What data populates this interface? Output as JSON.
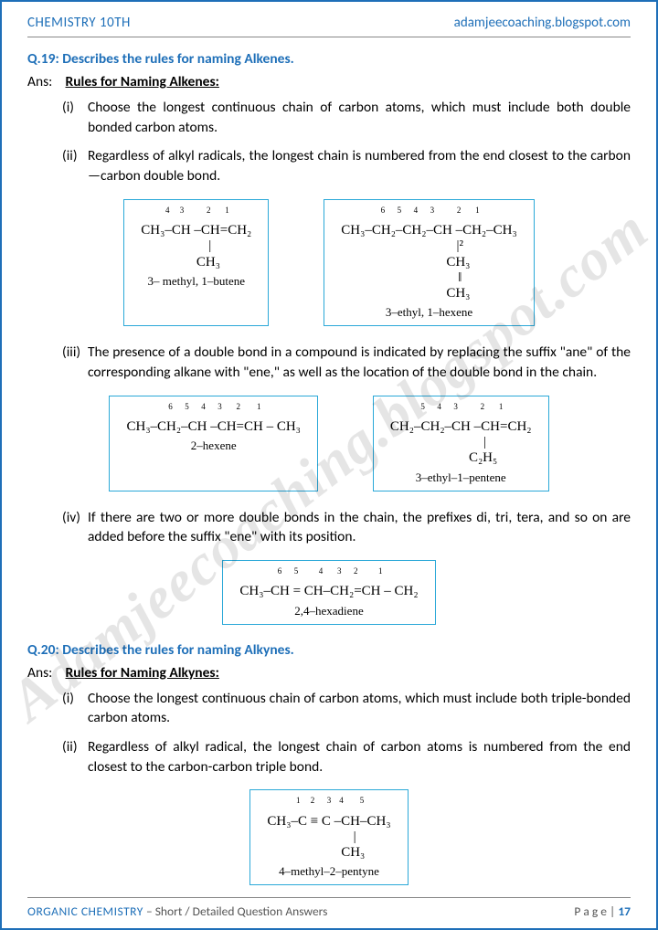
{
  "header": {
    "left": "CHEMISTRY 10TH",
    "right": "adamjeecoaching.blogspot.com"
  },
  "watermark": "Adamjeecoaching.blogspot.com",
  "q19": {
    "label": "Q.19:",
    "title": "Describes the rules for naming Alkenes.",
    "ans_label": "Ans:",
    "heading": "Rules for Naming Alkenes:",
    "rules": [
      {
        "num": "(i)",
        "text": "Choose the longest continuous chain of carbon atoms, which must include both double bonded carbon atoms."
      },
      {
        "num": "(ii)",
        "text": "Regardless of alkyl radicals, the longest chain is numbered from the end closest to the carbon—carbon double bond."
      },
      {
        "num": "(iii)",
        "text": "The presence of a double bond in a compound is indicated by replacing the suffix \"ane\" of the corresponding alkane with \"ene,\" as well as the location of the double bond in the chain."
      },
      {
        "num": "(iv)",
        "text": "If there are two or more double bonds in the chain, the prefixes di, tri, tera, and so on are added before the suffix \"ene\" with its position."
      }
    ],
    "box_ii_a": {
      "line1_sup": " 4     3           2       1",
      "line1": "CH₃–CH –CH=CH₂",
      "line2": "        |",
      "line3": "       CH₃",
      "name": "3– methyl, 1–butene"
    },
    "box_ii_b": {
      "line1_sup": " 6      5      4      3           2       1",
      "line1": "CH₃–CH₂–CH₂–CH –CH₂–CH₃",
      "line2": "                  |²",
      "line3": "                 CH₃",
      "line4": "                  ‖",
      "line5": "                 CH₃",
      "name": "3–ethyl, 1–hexene"
    },
    "box_iii_a": {
      "line1_sup": " 6      5      4      3       2        1",
      "line1": "CH₃–CH₂–CH –CH=CH – CH₃",
      "name": "2–hexene"
    },
    "box_iii_b": {
      "line1_sup": " 5      4      3           2       1",
      "line1": "CH₂–CH₂–CH –CH=CH₂",
      "line2": "              |",
      "line3": "             C₂H₅",
      "name": "3–ethyl–1–pentene"
    },
    "box_iv": {
      "line1_sup": " 6      5          4       3      2          1",
      "line1": "CH₃–CH = CH–CH₂=CH – CH₂",
      "name": "2,4–hexadiene"
    }
  },
  "q20": {
    "label": "Q.20:",
    "title": "Describes the rules for naming Alkynes.",
    "ans_label": "Ans:",
    "heading": "Rules for Naming Alkynes:",
    "rules": [
      {
        "num": "(i)",
        "text": "Choose the longest continuous chain of carbon atoms, which must include both triple-bonded carbon atoms."
      },
      {
        "num": "(ii)",
        "text": "Regardless of alkyl radical, the longest chain of carbon atoms is numbered from the end closest to the carbon-carbon triple bond."
      }
    ],
    "box_ii": {
      "line1_sup": " 1     2      3    4        5",
      "line1": "CH₃–C ≡ C –CH–CH₃",
      "line2": "               |",
      "line3": "              CH₃",
      "name": "4–methyl–2–pentyne"
    }
  },
  "footer": {
    "subject": "ORGANIC CHEMISTRY",
    "desc": " – Short / Detailed Question Answers",
    "page_label": "P a g e  | ",
    "page_num": "17"
  }
}
